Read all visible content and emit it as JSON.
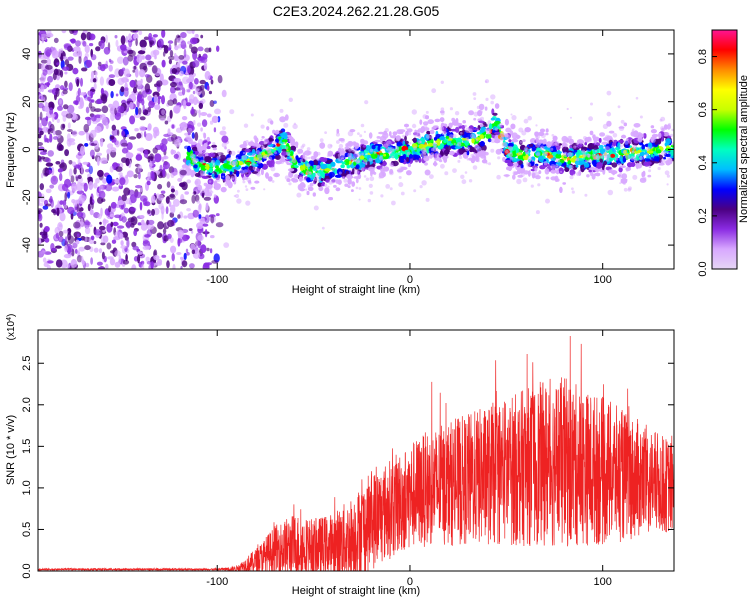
{
  "title": "C2E3.2024.262.21.28.G05",
  "colors": {
    "snr_line": "#ee2222",
    "axis": "#000000",
    "spectrogram_bg": "#ffffff"
  },
  "chart_data": [
    {
      "type": "heatmap",
      "xlabel": "Height of straight line (km)",
      "ylabel": "Frequency (Hz)",
      "xlim": [
        -193,
        137
      ],
      "ylim": [
        -50,
        50
      ],
      "x_ticks": [
        -100,
        0,
        100
      ],
      "x_tick_labels": [
        "-100",
        "0",
        "100"
      ],
      "y_ticks": [
        -40,
        -20,
        0,
        20,
        40
      ],
      "y_tick_labels": [
        "-40",
        "-20",
        "0",
        "20",
        "40"
      ],
      "colorbar": {
        "label": "Normalized spectral amplitude",
        "range": [
          0.0,
          0.9
        ],
        "ticks": [
          0.0,
          0.2,
          0.4,
          0.6,
          0.8
        ],
        "tick_labels": [
          "0.0",
          "0.2",
          "0.4",
          "0.6",
          "0.8"
        ],
        "colormap": [
          "#e6d6f5",
          "#d8a8ff",
          "#8a2be2",
          "#4b0082",
          "#0000ff",
          "#00bfff",
          "#00ffc0",
          "#00ff00",
          "#c8ff00",
          "#ffff00",
          "#ff8c00",
          "#ff0000",
          "#ff1493"
        ]
      },
      "ridge": {
        "x": [
          -115,
          -110,
          -100,
          -90,
          -80,
          -70,
          -65,
          -60,
          -50,
          -40,
          -30,
          -20,
          -10,
          0,
          10,
          20,
          30,
          40,
          45,
          50,
          60,
          70,
          80,
          90,
          100,
          110,
          120,
          130,
          137
        ],
        "y": [
          -2,
          -6,
          -8,
          -6,
          -4,
          0,
          4,
          -6,
          -10,
          -8,
          -5,
          -2,
          -2,
          0,
          2,
          4,
          3,
          6,
          12,
          0,
          -3,
          -2,
          -4,
          -3,
          -2,
          -2,
          -1,
          0,
          1
        ]
      },
      "noise_region_x": [
        -193,
        -95
      ]
    },
    {
      "type": "line",
      "xlabel": "Height of straight line (km)",
      "ylabel": "SNR (10 * v/v)",
      "y_multiplier": "(x10^4)",
      "xlim": [
        -193,
        137
      ],
      "ylim": [
        0,
        2.9
      ],
      "x_ticks": [
        -100,
        0,
        100
      ],
      "x_tick_labels": [
        "-100",
        "0",
        "100"
      ],
      "y_ticks": [
        0.0,
        0.5,
        1.0,
        1.5,
        2.0,
        2.5
      ],
      "y_tick_labels": [
        "0.0",
        "0.5",
        "1.0",
        "1.5",
        "2.0",
        "2.5"
      ],
      "envelope": {
        "x": [
          -193,
          -100,
          -90,
          -80,
          -70,
          -60,
          -50,
          -40,
          -30,
          -20,
          -10,
          0,
          10,
          20,
          30,
          40,
          50,
          60,
          70,
          80,
          90,
          100,
          110,
          120,
          130,
          137
        ],
        "mean": [
          0.02,
          0.02,
          0.03,
          0.12,
          0.25,
          0.3,
          0.28,
          0.3,
          0.4,
          0.6,
          0.75,
          0.9,
          1.0,
          1.05,
          1.1,
          1.15,
          1.2,
          1.25,
          1.3,
          1.3,
          1.25,
          1.2,
          1.15,
          1.1,
          1.05,
          1.0
        ],
        "spread": [
          0.01,
          0.01,
          0.03,
          0.15,
          0.3,
          0.4,
          0.35,
          0.4,
          0.5,
          0.6,
          0.6,
          0.65,
          0.7,
          0.75,
          0.8,
          0.85,
          0.9,
          0.95,
          1.0,
          1.05,
          0.95,
          0.9,
          0.8,
          0.7,
          0.6,
          0.55
        ]
      }
    }
  ]
}
